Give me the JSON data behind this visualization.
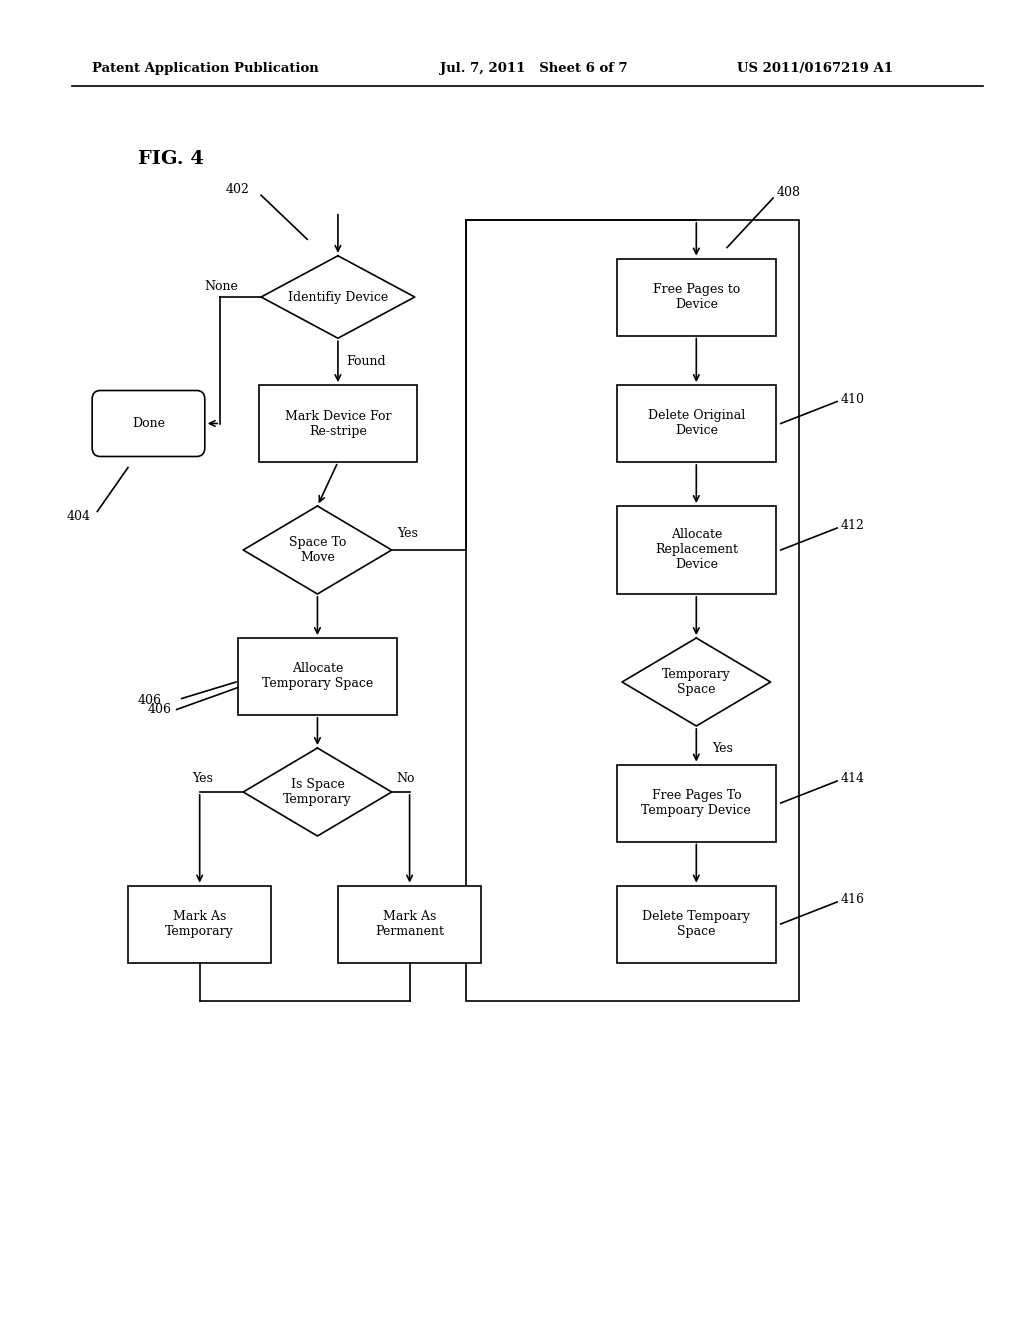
{
  "title": "FIG. 4",
  "header_left": "Patent Application Publication",
  "header_mid": "Jul. 7, 2011   Sheet 6 of 7",
  "header_right": "US 2011/0167219 A1",
  "background": "#ffffff",
  "fig_label": "FIG. 4",
  "nodes": {
    "identify_device": {
      "label": "Identifiy Device"
    },
    "mark_device": {
      "label": "Mark Device For\nRe-stripe"
    },
    "done": {
      "label": "Done"
    },
    "space_to_move": {
      "label": "Space To\nMove"
    },
    "alloc_temp": {
      "label": "Allocate\nTemporary Space"
    },
    "is_space_temp": {
      "label": "Is Space\nTemporary"
    },
    "mark_temp": {
      "label": "Mark As\nTemporary"
    },
    "mark_perm": {
      "label": "Mark As\nPermanent"
    },
    "free_pages": {
      "label": "Free Pages to\nDevice"
    },
    "delete_orig": {
      "label": "Delete Original\nDevice"
    },
    "alloc_replace": {
      "label": "Allocate\nReplacement\nDevice"
    },
    "temp_space": {
      "label": "Temporary\nSpace"
    },
    "free_pages_temp": {
      "label": "Free Pages To\nTempoary Device"
    },
    "delete_temp": {
      "label": "Delete Tempoary\nSpace"
    }
  },
  "labels": {
    "402": "402",
    "404": "404",
    "406": "406",
    "408": "408",
    "410": "410",
    "412": "412",
    "414": "414",
    "416": "416"
  }
}
